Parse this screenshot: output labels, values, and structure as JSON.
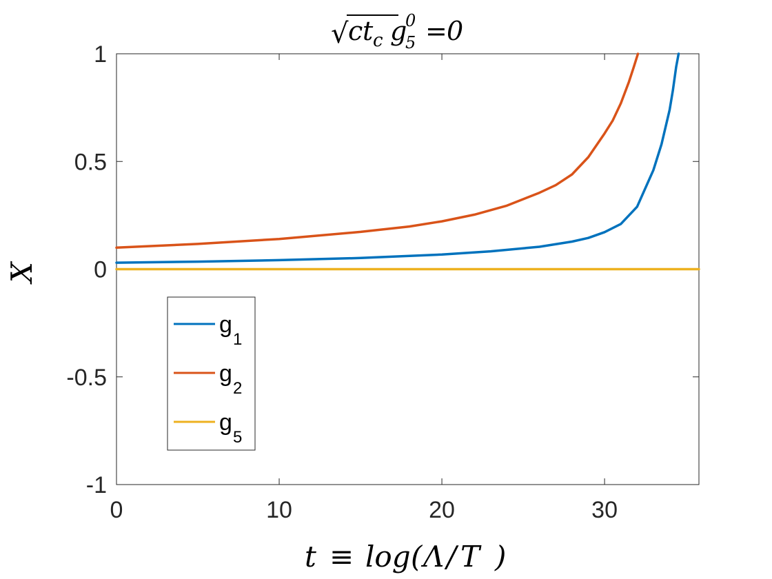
{
  "chart_data": {
    "type": "line",
    "title": {
      "sqrt_arg_c": "c",
      "sqrt_arg_t": "t",
      "sqrt_arg_sub": "c",
      "g": "g",
      "g_sup": "0",
      "g_sub": "5",
      "eq": "=",
      "value": "0"
    },
    "xlabel": {
      "t": "t",
      "equiv": "≡",
      "log": "log",
      "open": "(",
      "Lambda": "Λ",
      "slash": "/",
      "T": "T",
      "close": ")"
    },
    "ylabel": "X",
    "xlim": [
      0,
      35.8
    ],
    "ylim": [
      -1,
      1
    ],
    "xticks": [
      0,
      10,
      20,
      30
    ],
    "xtick_labels": [
      "0",
      "10",
      "20",
      "30"
    ],
    "yticks": [
      -1,
      -0.5,
      0,
      0.5,
      1
    ],
    "ytick_labels": [
      "-1",
      "-0.5",
      "0",
      "0.5",
      "1"
    ],
    "legend_position": "lower-left",
    "series": [
      {
        "name": "g1",
        "label_main": "g",
        "label_sub": "1",
        "color": "#0072BD",
        "x": [
          0,
          5,
          10,
          15,
          20,
          23,
          26,
          28,
          29,
          30,
          31,
          32,
          33,
          33.5,
          34,
          34.2,
          34.4,
          34.55
        ],
        "y": [
          0.03,
          0.035,
          0.042,
          0.052,
          0.068,
          0.083,
          0.104,
          0.128,
          0.145,
          0.172,
          0.21,
          0.29,
          0.46,
          0.58,
          0.74,
          0.83,
          0.94,
          1.0
        ]
      },
      {
        "name": "g2",
        "label_main": "g",
        "label_sub": "2",
        "color": "#D95319",
        "x": [
          0,
          5,
          10,
          15,
          18,
          20,
          22,
          24,
          26,
          27,
          28,
          29,
          30,
          30.5,
          31,
          31.5,
          31.8,
          32.05
        ],
        "y": [
          0.1,
          0.117,
          0.14,
          0.173,
          0.198,
          0.222,
          0.253,
          0.295,
          0.355,
          0.39,
          0.44,
          0.52,
          0.63,
          0.69,
          0.77,
          0.87,
          0.94,
          1.0
        ]
      },
      {
        "name": "g5",
        "label_main": "g",
        "label_sub": "5",
        "color": "#EDB120",
        "x": [
          0,
          35.8
        ],
        "y": [
          0,
          0
        ]
      }
    ]
  }
}
